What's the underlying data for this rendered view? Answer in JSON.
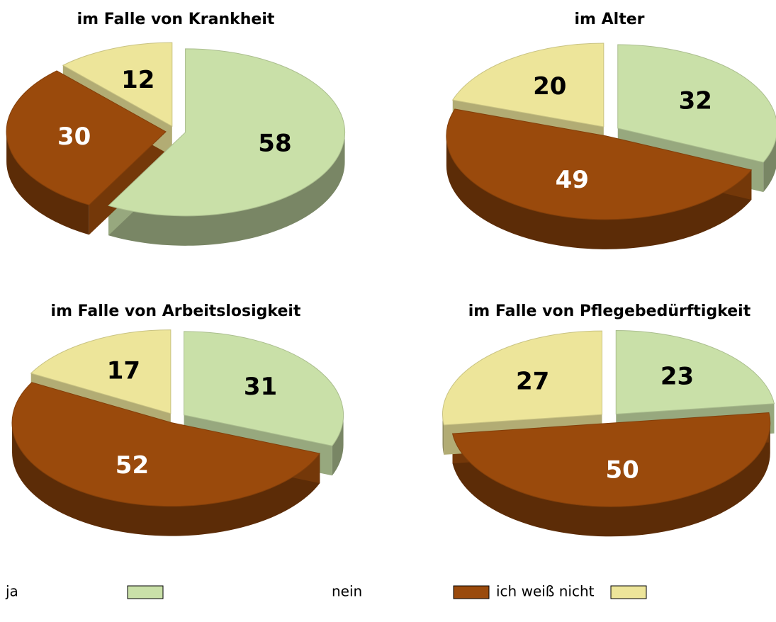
{
  "chart_data": [
    {
      "type": "pie",
      "title": "im Falle von Krankheit",
      "categories": [
        "ja",
        "nein",
        "ich weiß nicht"
      ],
      "values": [
        58,
        30,
        12
      ],
      "colors": [
        "#c9e0a8",
        "#9a4a0c",
        "#ede59a"
      ]
    },
    {
      "type": "pie",
      "title": "im Alter",
      "categories": [
        "ja",
        "nein",
        "ich weiß nicht"
      ],
      "values": [
        32,
        49,
        20
      ],
      "colors": [
        "#c9e0a8",
        "#9a4a0c",
        "#ede59a"
      ]
    },
    {
      "type": "pie",
      "title": "im Falle von Arbeitslosigkeit",
      "categories": [
        "ja",
        "nein",
        "ich weiß nicht"
      ],
      "values": [
        31,
        52,
        17
      ],
      "colors": [
        "#c9e0a8",
        "#9a4a0c",
        "#ede59a"
      ]
    },
    {
      "type": "pie",
      "title": "im Falle von Pflegebedürftigkeit",
      "categories": [
        "ja",
        "nein",
        "ich weiß nicht"
      ],
      "values": [
        23,
        50,
        27
      ],
      "colors": [
        "#c9e0a8",
        "#9a4a0c",
        "#ede59a"
      ]
    }
  ]
}
